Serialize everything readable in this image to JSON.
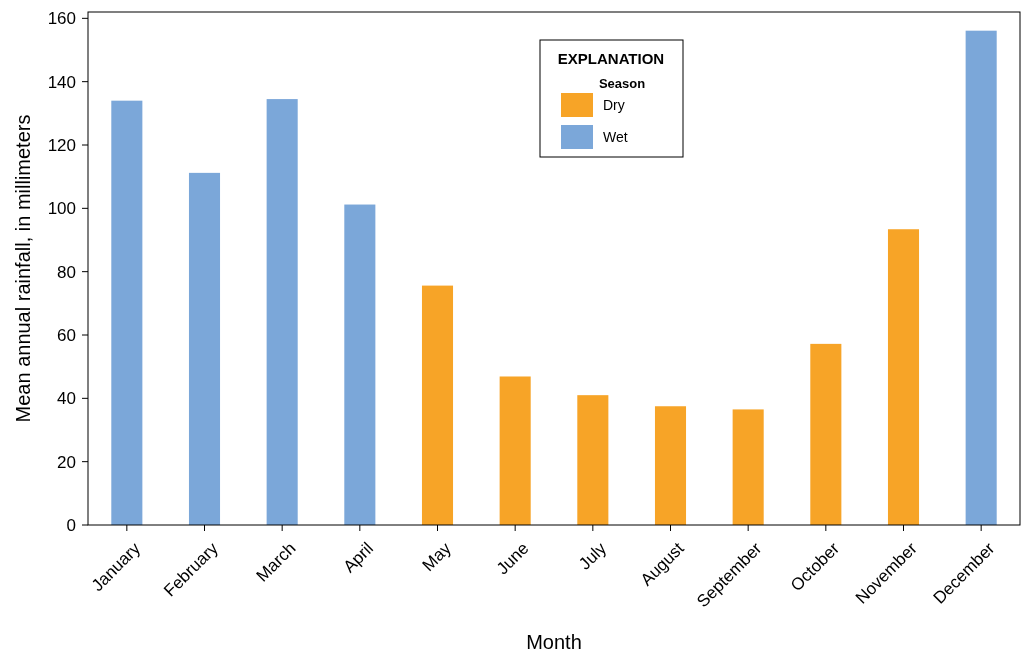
{
  "chart_data": {
    "type": "bar",
    "xlabel": "Month",
    "ylabel": "Mean annual rainfall, in millimeters",
    "categories": [
      "January",
      "February",
      "March",
      "April",
      "May",
      "June",
      "July",
      "August",
      "September",
      "October",
      "November",
      "December"
    ],
    "series": [
      {
        "name": "Dry",
        "color": "#f7a427",
        "values": [
          null,
          null,
          null,
          null,
          75.6,
          46.9,
          41,
          37.5,
          36.5,
          57.2,
          93.4,
          null
        ]
      },
      {
        "name": "Wet",
        "color": "#7ba7d9",
        "values": [
          134,
          111.2,
          134.5,
          101.2,
          null,
          null,
          null,
          null,
          null,
          null,
          null,
          156.1
        ]
      }
    ],
    "ylim": [
      0,
      162
    ],
    "yticks": [
      0,
      20,
      40,
      60,
      80,
      100,
      120,
      140,
      160
    ],
    "grid": false,
    "legend": "top",
    "legend_title": "EXPLANATION",
    "annotations": [
      "Season"
    ]
  }
}
